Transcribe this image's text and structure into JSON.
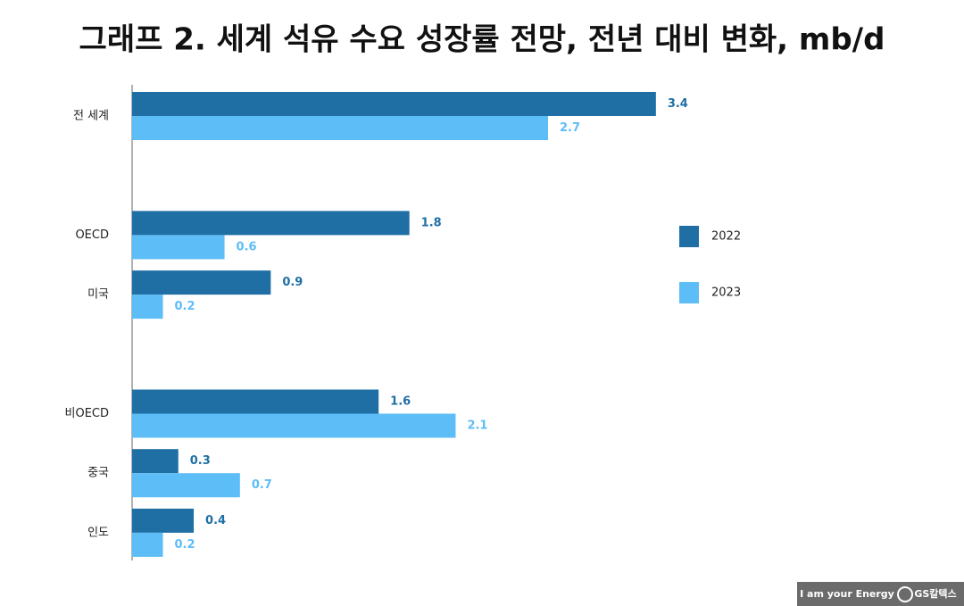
{
  "chart_data": {
    "type": "hbar",
    "title": "그래프 2. 세계 석유 수요 성장률 전망, 전년 대비 변화, mb/d",
    "categories": [
      "전 세계",
      null,
      "OECD",
      "미국",
      null,
      "비OECD",
      "중국",
      "인도"
    ],
    "series": [
      {
        "name": "2022",
        "color": "#1f6fa5",
        "values": [
          3.4,
          null,
          1.8,
          0.9,
          null,
          1.6,
          0.3,
          0.4
        ]
      },
      {
        "name": "2023",
        "color": "#5dbdf6",
        "values": [
          2.7,
          null,
          0.6,
          0.2,
          null,
          2.1,
          0.7,
          0.2
        ]
      }
    ],
    "legend": "right"
  },
  "footer": {
    "slogan": "I am your Energy",
    "brand": "GS칼텍스"
  }
}
